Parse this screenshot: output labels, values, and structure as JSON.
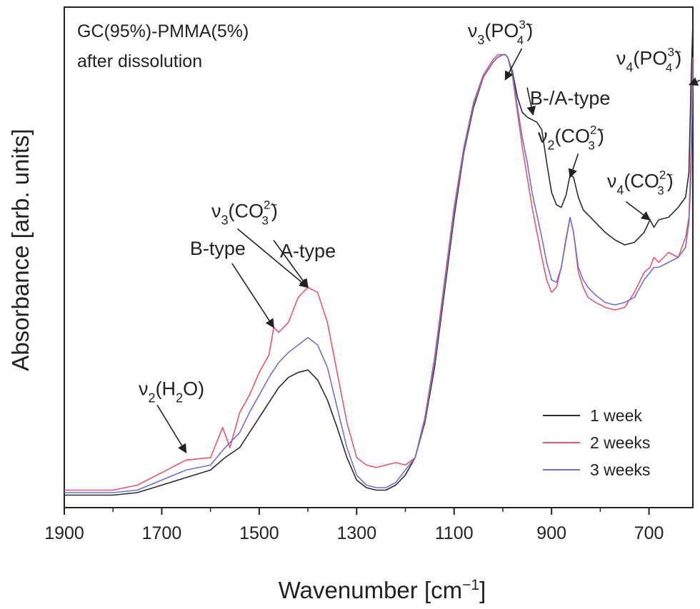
{
  "chart_data": {
    "type": "line",
    "xlabel": "Wavenumber [cm",
    "xlabel_sup": "−1",
    "xlabel_end": "]",
    "ylabel": "Absorbance [arb. units]",
    "sample_label": [
      "GC(95%)-PMMA(5%)",
      "after dissolution"
    ],
    "xlim": [
      1900,
      610
    ],
    "x_reversed": true,
    "ylim": [
      0,
      1
    ],
    "y_ticks_labeled": false,
    "grid": false,
    "legend": {
      "placement": "bottom-right",
      "entries": [
        {
          "label": "1 week",
          "color": "#2b2b2b"
        },
        {
          "label": "2 weeks",
          "color": "#e8566e"
        },
        {
          "label": "3 weeks",
          "color": "#6f6fdc"
        }
      ]
    },
    "x_ticks": [
      1900,
      1700,
      1500,
      1300,
      1100,
      900,
      700
    ],
    "x_tick_labels": [
      "1900",
      "1700",
      "1500",
      "1300",
      "1100",
      "900",
      "700"
    ],
    "annotations": [
      {
        "pre": "ν",
        "sub1": "2",
        "mid": "(H",
        "sub2": "2",
        "post": "O)",
        "sup": "",
        "sub3": "",
        "end": "",
        "tx": 1680,
        "ty": 0.225,
        "ax": 1650,
        "ay": 0.11
      },
      {
        "pre": "",
        "sub1": "",
        "mid": "B-type",
        "sub2": "",
        "post": "",
        "sup": "",
        "sub3": "",
        "end": "",
        "tx": 1585,
        "ty": 0.505,
        "ax": 1470,
        "ay": 0.36
      },
      {
        "pre": "ν",
        "sub1": "3",
        "mid": "(CO",
        "sub2": "",
        "post": "",
        "sup": "2−",
        "sub3": "3",
        "end": ")",
        "tx": 1530,
        "ty": 0.58,
        "ax": 1400,
        "ay": 0.44
      },
      {
        "pre": "",
        "sub1": "",
        "mid": "A-type",
        "sub2": "",
        "post": "",
        "sup": "",
        "sub3": "",
        "end": "",
        "tx": 1400,
        "ty": 0.5,
        "ax": 1400,
        "ay": 0.44
      },
      {
        "pre": "ν",
        "sub1": "3",
        "mid": "(PO",
        "sub2": "",
        "post": "",
        "sup": "3−",
        "sub3": "4",
        "end": ")",
        "tx": 1005,
        "ty": 0.94,
        "ax": 995,
        "ay": 0.855
      },
      {
        "pre": "",
        "sub1": "",
        "mid": "B-/A-type",
        "sub2": "",
        "post": "",
        "sup": "",
        "sub3": "",
        "end": "",
        "tx": 862,
        "ty": 0.805,
        "ax": 938,
        "ay": 0.785
      },
      {
        "pre": "ν",
        "sub1": "2",
        "mid": "(CO",
        "sub2": "",
        "post": "",
        "sup": "2−",
        "sub3": "3",
        "end": ")",
        "tx": 860,
        "ty": 0.73,
        "ax": 862,
        "ay": 0.66
      },
      {
        "pre": "ν",
        "sub1": "4",
        "mid": "(CO",
        "sub2": "",
        "post": "",
        "sup": "2−",
        "sub3": "3",
        "end": ")",
        "tx": 718,
        "ty": 0.64,
        "ax": 698,
        "ay": 0.575
      },
      {
        "pre": "ν",
        "sub1": "4",
        "mid": "(PO",
        "sub2": "",
        "post": "",
        "sup": "3−",
        "sub3": "4",
        "end": ")",
        "tx": 700,
        "ty": 0.885,
        "ax": 617,
        "ay": 0.845
      }
    ],
    "series": [
      {
        "name": "1 week",
        "color": "#2b2b2b",
        "x": [
          1900,
          1850,
          1800,
          1750,
          1700,
          1650,
          1600,
          1570,
          1540,
          1520,
          1500,
          1480,
          1460,
          1440,
          1420,
          1400,
          1380,
          1360,
          1340,
          1320,
          1300,
          1280,
          1260,
          1240,
          1220,
          1200,
          1180,
          1160,
          1140,
          1120,
          1100,
          1080,
          1060,
          1040,
          1020,
          1010,
          1000,
          995,
          990,
          980,
          970,
          960,
          950,
          940,
          930,
          920,
          910,
          900,
          890,
          880,
          870,
          862,
          855,
          845,
          835,
          825,
          810,
          790,
          770,
          750,
          730,
          710,
          698,
          690,
          680,
          660,
          640,
          625,
          618,
          614,
          610
        ],
        "y": [
          0.025,
          0.025,
          0.025,
          0.03,
          0.045,
          0.06,
          0.075,
          0.1,
          0.12,
          0.15,
          0.18,
          0.21,
          0.24,
          0.26,
          0.27,
          0.275,
          0.255,
          0.215,
          0.16,
          0.1,
          0.055,
          0.04,
          0.035,
          0.035,
          0.045,
          0.065,
          0.1,
          0.17,
          0.28,
          0.43,
          0.58,
          0.71,
          0.8,
          0.86,
          0.89,
          0.9,
          0.905,
          0.905,
          0.9,
          0.87,
          0.82,
          0.79,
          0.78,
          0.775,
          0.77,
          0.755,
          0.69,
          0.63,
          0.605,
          0.6,
          0.625,
          0.665,
          0.66,
          0.62,
          0.595,
          0.585,
          0.57,
          0.55,
          0.535,
          0.525,
          0.53,
          0.55,
          0.575,
          0.56,
          0.575,
          0.58,
          0.6,
          0.62,
          0.67,
          0.84,
          0.97
        ]
      },
      {
        "name": "2 weeks",
        "color": "#e8566e",
        "x": [
          1900,
          1850,
          1800,
          1750,
          1700,
          1650,
          1600,
          1575,
          1560,
          1540,
          1520,
          1500,
          1480,
          1470,
          1460,
          1440,
          1420,
          1400,
          1380,
          1360,
          1340,
          1320,
          1300,
          1280,
          1260,
          1240,
          1220,
          1200,
          1180,
          1160,
          1140,
          1120,
          1100,
          1080,
          1060,
          1040,
          1020,
          1010,
          1000,
          995,
          990,
          980,
          970,
          960,
          950,
          940,
          930,
          920,
          910,
          900,
          890,
          880,
          870,
          862,
          855,
          845,
          835,
          825,
          810,
          790,
          770,
          750,
          730,
          710,
          698,
          690,
          680,
          660,
          640,
          625,
          618,
          614,
          610
        ],
        "y": [
          0.035,
          0.035,
          0.035,
          0.045,
          0.07,
          0.095,
          0.1,
          0.16,
          0.12,
          0.19,
          0.225,
          0.27,
          0.305,
          0.36,
          0.35,
          0.37,
          0.42,
          0.44,
          0.43,
          0.37,
          0.27,
          0.17,
          0.1,
          0.085,
          0.08,
          0.085,
          0.09,
          0.085,
          0.1,
          0.18,
          0.3,
          0.45,
          0.6,
          0.72,
          0.81,
          0.865,
          0.895,
          0.905,
          0.905,
          0.905,
          0.9,
          0.86,
          0.79,
          0.72,
          0.66,
          0.6,
          0.55,
          0.5,
          0.455,
          0.43,
          0.44,
          0.48,
          0.54,
          0.58,
          0.55,
          0.47,
          0.44,
          0.42,
          0.41,
          0.4,
          0.395,
          0.4,
          0.43,
          0.47,
          0.48,
          0.5,
          0.49,
          0.51,
          0.5,
          0.54,
          0.58,
          0.7,
          0.9
        ]
      },
      {
        "name": "3 weeks",
        "color": "#6f6fdc",
        "x": [
          1900,
          1850,
          1800,
          1750,
          1700,
          1650,
          1600,
          1570,
          1540,
          1520,
          1500,
          1480,
          1460,
          1440,
          1420,
          1400,
          1380,
          1360,
          1340,
          1320,
          1300,
          1280,
          1260,
          1240,
          1220,
          1200,
          1180,
          1160,
          1140,
          1120,
          1100,
          1080,
          1060,
          1040,
          1020,
          1010,
          1000,
          995,
          990,
          980,
          970,
          960,
          950,
          940,
          930,
          920,
          910,
          900,
          890,
          880,
          870,
          862,
          855,
          845,
          835,
          825,
          810,
          790,
          770,
          750,
          730,
          710,
          698,
          690,
          680,
          660,
          640,
          625,
          618,
          614,
          610
        ],
        "y": [
          0.03,
          0.03,
          0.03,
          0.035,
          0.055,
          0.075,
          0.085,
          0.12,
          0.15,
          0.19,
          0.225,
          0.26,
          0.29,
          0.31,
          0.325,
          0.34,
          0.325,
          0.28,
          0.2,
          0.12,
          0.065,
          0.045,
          0.04,
          0.04,
          0.05,
          0.075,
          0.1,
          0.175,
          0.29,
          0.44,
          0.59,
          0.715,
          0.805,
          0.86,
          0.89,
          0.9,
          0.905,
          0.905,
          0.9,
          0.865,
          0.8,
          0.74,
          0.69,
          0.63,
          0.585,
          0.54,
          0.49,
          0.455,
          0.45,
          0.48,
          0.535,
          0.58,
          0.55,
          0.48,
          0.455,
          0.44,
          0.425,
          0.41,
          0.405,
          0.41,
          0.42,
          0.455,
          0.47,
          0.48,
          0.48,
          0.49,
          0.5,
          0.52,
          0.57,
          0.66,
          0.87
        ]
      }
    ]
  }
}
